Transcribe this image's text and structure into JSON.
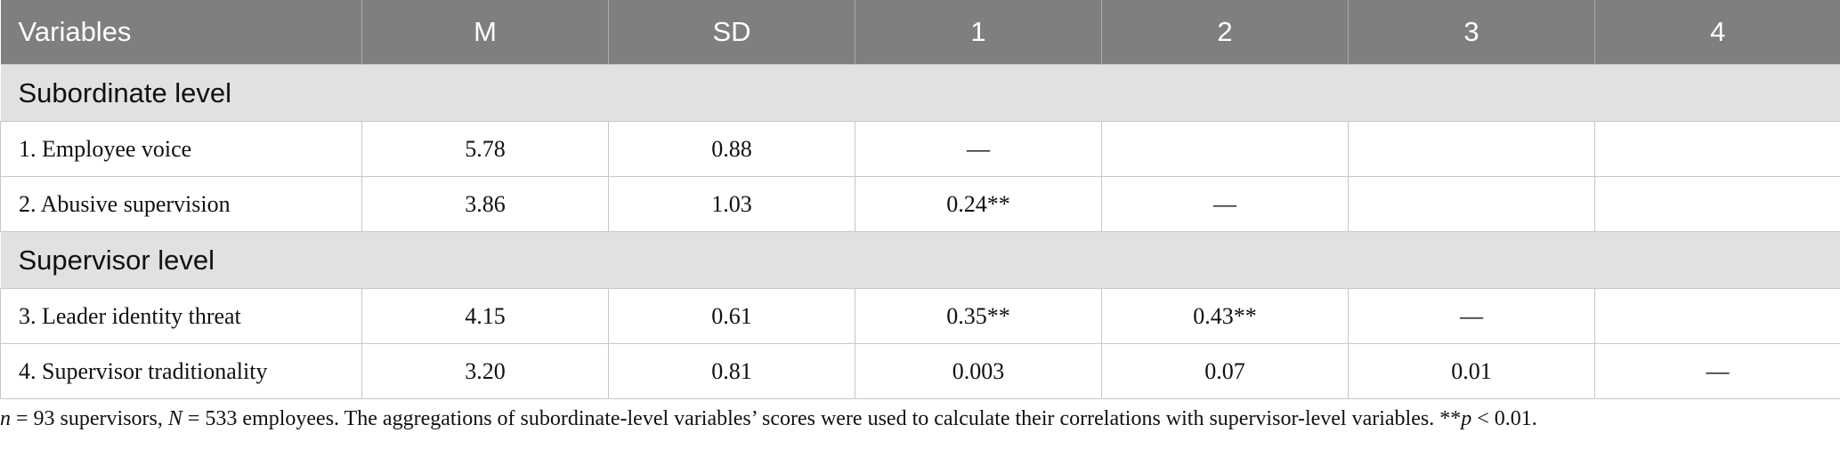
{
  "table": {
    "headers": [
      "Variables",
      "M",
      "SD",
      "1",
      "2",
      "3",
      "4"
    ],
    "sections": [
      {
        "title": "Subordinate level",
        "rows": [
          [
            "1. Employee voice",
            "5.78",
            "0.88",
            "—",
            "",
            "",
            ""
          ],
          [
            "2. Abusive supervision",
            "3.86",
            "1.03",
            "0.24**",
            "—",
            "",
            ""
          ]
        ]
      },
      {
        "title": "Supervisor level",
        "rows": [
          [
            "3. Leader identity threat",
            "4.15",
            "0.61",
            "0.35**",
            "0.43**",
            "—",
            ""
          ],
          [
            "4. Supervisor traditionality",
            "3.20",
            "0.81",
            "0.003",
            "0.07",
            "0.01",
            "—"
          ]
        ]
      }
    ]
  },
  "note": {
    "n_var": "n",
    "n_text": " = 93 supervisors, ",
    "N_var": "N",
    "N_text": " = 533 employees. The aggregations of subordinate-level variables’ scores were used to calculate their correlations with supervisor-level variables. **",
    "p_var": "p",
    "p_text": " < 0.01."
  }
}
